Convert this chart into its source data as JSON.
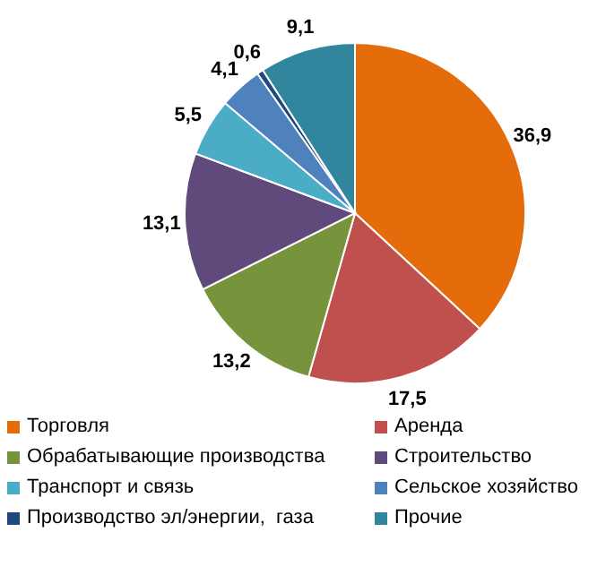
{
  "chart_data": {
    "type": "pie",
    "categories": [
      "Торговля",
      "Аренда",
      "Обрабатывающие производства",
      "Строительство",
      "Транспорт и связь",
      "Сельское хозяйство",
      "Производство эл/энергии,  газа",
      "Прочие"
    ],
    "values": [
      36.9,
      17.5,
      13.2,
      13.1,
      5.5,
      4.1,
      0.6,
      9.1
    ],
    "value_labels": [
      "36,9",
      "17,5",
      "13,2",
      "13,1",
      "5,5",
      "4,1",
      "0,6",
      "9,1"
    ],
    "colors": [
      "#e46c0a",
      "#c0504d",
      "#77933c",
      "#604a7b",
      "#4bacc6",
      "#4f81bd",
      "#1f497d",
      "#31859c"
    ],
    "legend": "bottom"
  }
}
